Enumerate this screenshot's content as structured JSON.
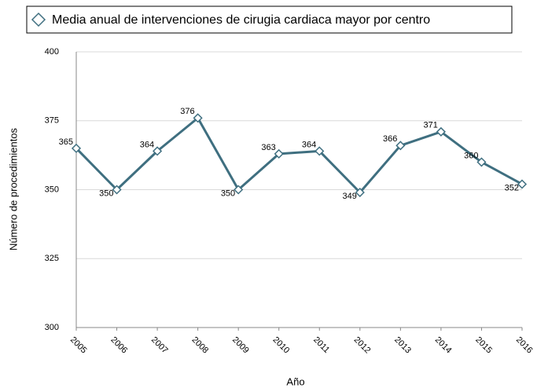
{
  "chart_data": {
    "type": "line",
    "x_title": "Año",
    "y_title": "Número de procedimientos",
    "categories": [
      "2005",
      "2006",
      "2007",
      "2008",
      "2009",
      "2010",
      "2011",
      "2012",
      "2013",
      "2014",
      "2015",
      "2016"
    ],
    "series": [
      {
        "name": "Media anual de intervenciones de cirugia cardiaca mayor por centro",
        "color": "#3f6f80",
        "values": [
          365,
          350,
          364,
          376,
          350,
          363,
          364,
          349,
          366,
          371,
          360,
          352
        ]
      }
    ],
    "ylim": [
      300,
      400
    ],
    "yticks": [
      300,
      325,
      350,
      375,
      400
    ],
    "grid": true,
    "legend": "top"
  }
}
